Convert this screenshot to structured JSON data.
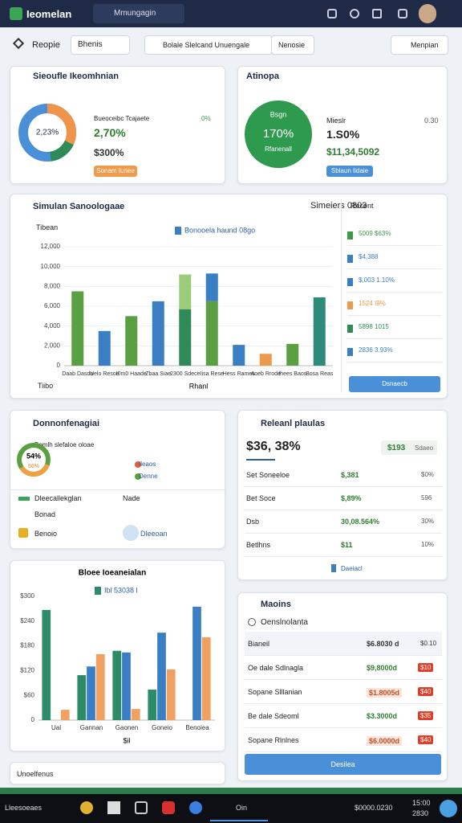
{
  "header": {
    "app_name": "Ieomelan",
    "search": "Mmungagin"
  },
  "toolbar": {
    "page": "Reopie",
    "filter": "Bhenis",
    "range": "Bolale Slelcand Unuengale",
    "mode": "Nenosie",
    "action": "Menpian"
  },
  "summary": {
    "title": "Sieoufle Ikeomhnian",
    "donut_label": "2,23%",
    "caption": "Bueoceibc Tcajaete",
    "delta": "0%",
    "value1": "2,70%",
    "value2": "$300%",
    "button": "Sonam Iunee"
  },
  "activity": {
    "title": "Atinopa",
    "ring_title": "Bsgn",
    "ring_value": "170%",
    "ring_caption": "Rfanenall",
    "label": "Mieslr",
    "label_value": "0.30",
    "value1": "1.S0%",
    "value2": "$11,34,5092",
    "button": "Sblaun Iidaie"
  },
  "overview": {
    "title": "Simulan Sanoologaae",
    "badge": "Simeiers 0803",
    "top_label": "Tibean",
    "bottom_label": "Tiibo",
    "recent_title": "Recent",
    "recent": [
      {
        "text": "5009 $63%",
        "color": "#3a9a4a"
      },
      {
        "text": "$4,388",
        "color": "#3a7fc4"
      },
      {
        "text": "$,003 1.10%",
        "color": "#3a7fc4"
      },
      {
        "text": "1524 I9%",
        "color": "#ee9a4d"
      },
      {
        "text": "5898 1015",
        "color": "#2e8b57"
      },
      {
        "text": "2836 3.93%",
        "color": "#3a7fc4"
      }
    ],
    "button": "Dsnaecb"
  },
  "chart_data": [
    {
      "type": "bar",
      "stacked": true,
      "x_label": "Rhanl",
      "categories": [
        "Daab Dasda",
        "Uelo Resoe",
        "I0m0 Haade",
        "Zbaa Siae",
        "2300 Sdece",
        "Iisa Rese",
        "Hess Rames",
        "Aoeb Rrode",
        "Ihees Baos",
        "Bosa Reas"
      ],
      "series": [
        {
          "name": "Bonooela haund 08go",
          "color": "#3a7fc4",
          "colors": [
            "#5aa042",
            "#3a7fc4",
            "#5aa042",
            "#3a7fc4",
            "#2e8b57",
            "#5aa042",
            "#3a7fc4",
            "#ee9a4d",
            "#5aa042",
            "#2e8b7a"
          ],
          "values": [
            7500,
            3500,
            5000,
            6500,
            5700,
            6500,
            2100,
            1200,
            2200,
            6900
          ]
        },
        {
          "colors": [
            null,
            null,
            null,
            null,
            "#9ccc7a",
            "#3a7fc4",
            null,
            null,
            null,
            null
          ],
          "values": [
            null,
            null,
            null,
            null,
            3500,
            2800,
            null,
            null,
            null,
            null
          ]
        }
      ],
      "ylim": [
        0,
        12000
      ],
      "yticks": [
        0,
        {
          "value": 2000,
          "label": "2,000"
        },
        {
          "value": 4000,
          "label": "4,000"
        },
        {
          "value": 6000,
          "label": "6,000"
        },
        {
          "value": 8000,
          "label": "8,000"
        },
        {
          "value": 10000,
          "label": "10,000"
        },
        {
          "value": 12000,
          "label": "12,000"
        }
      ],
      "grid": true
    },
    {
      "type": "bar",
      "stacked": false,
      "title": "Bloee Ioeaneialan",
      "x_label": "$il",
      "categories": [
        "Ual",
        "Gannan",
        "Gaonen",
        "Goneio",
        "Benoiea"
      ],
      "series": [
        {
          "name": "Ibl 53038 l",
          "color": "#2e8b6a",
          "values": [
            267,
            109,
            168,
            74,
            null
          ]
        },
        {
          "color": "#3a7fc4",
          "values": [
            null,
            130,
            164,
            212,
            275
          ]
        },
        {
          "color": "#f0a060",
          "values": [
            25,
            160,
            27,
            123,
            201
          ]
        }
      ],
      "ylim": [
        0,
        300
      ],
      "yticks": [
        0,
        {
          "value": 60,
          "label": "$60"
        },
        {
          "value": 120,
          "label": "$120"
        },
        {
          "value": 180,
          "label": "$180"
        },
        {
          "value": 240,
          "label": "$240"
        },
        {
          "value": 300,
          "label": "$300"
        }
      ],
      "grid": false
    }
  ],
  "conversion": {
    "title": "Donnonfenagiai",
    "donut_value": "54%",
    "donut_sub": "56%",
    "text": "Bemlh slefaloe oloae",
    "legend": [
      "Ileaos",
      "Denne"
    ],
    "section": "Dleecallekglan",
    "section_right": "Nade",
    "items": [
      "Bonad",
      "Benoio"
    ],
    "link": "Dleeoan"
  },
  "plans": {
    "title": "Releanl plaulas",
    "total": "$36, 38%",
    "badge_value": "$193",
    "badge_text": "Sdaeo",
    "rows": [
      [
        "Set Soneeloe",
        "$,381",
        "$0%"
      ],
      [
        "Bet Soce",
        "$,89%",
        "596"
      ],
      [
        "Dsb",
        "30,08.564%",
        "30%"
      ],
      [
        "Betlhns",
        "$11",
        "10%"
      ]
    ],
    "footer": "Daeiacl"
  },
  "bills": {
    "title": "Maoins",
    "subtitle": "Oenslnolanta",
    "rows": [
      [
        "Bianeil",
        "$6.8030 d",
        "$0.10"
      ],
      [
        "Oe dale Sdlnagla",
        "$9,8000d",
        "$10"
      ],
      [
        "Sopane Slllanian",
        "$1.8005d",
        "$40"
      ],
      [
        "Be dale Sdeoml",
        "$3.3000d",
        "$35"
      ],
      [
        "Sopane Rlnlnes",
        "$6.0000d",
        "$40"
      ]
    ],
    "button": "Desilea"
  },
  "footer_card": "Unoelfenus",
  "taskbar": {
    "search": "Lleesoeaes",
    "app": "Oin",
    "status": "$0000.0230",
    "time": "15:00",
    "date": "2830"
  }
}
